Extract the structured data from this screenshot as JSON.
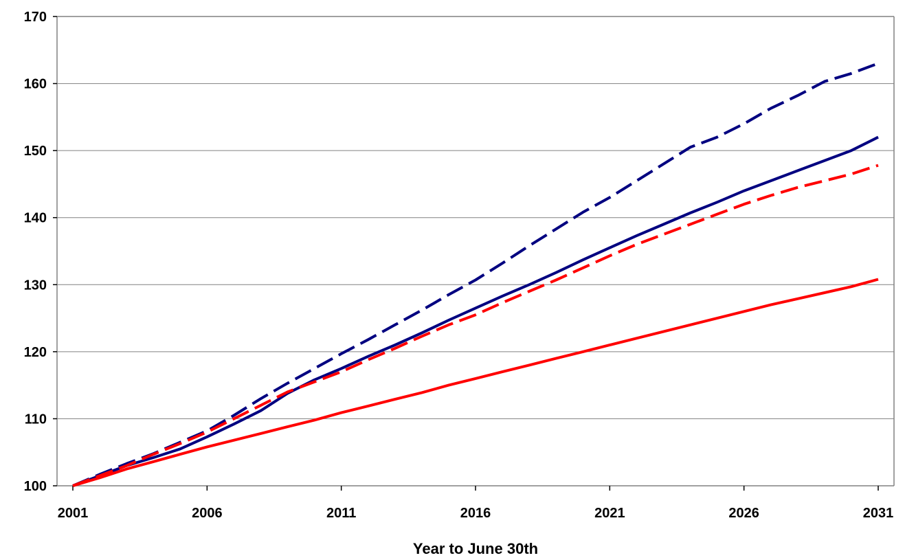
{
  "chart_data": {
    "type": "line",
    "title": "",
    "xlabel": "Year to June 30th",
    "ylabel": "",
    "xlim": [
      2001,
      2031
    ],
    "ylim": [
      100,
      170
    ],
    "x_ticks": [
      2001,
      2006,
      2011,
      2016,
      2021,
      2026,
      2031
    ],
    "x_tick_labels": [
      "2001",
      "2006",
      "2011",
      "2016",
      "2021",
      "2026",
      "2031"
    ],
    "y_ticks": [
      100,
      110,
      120,
      130,
      140,
      150,
      160,
      170
    ],
    "y_tick_labels": [
      "100",
      "110",
      "120",
      "130",
      "140",
      "150",
      "160",
      "170"
    ],
    "grid": "horizontal",
    "legend": "none",
    "series": [
      {
        "color": "#000080",
        "style": "dashed",
        "x": [
          2001,
          2002,
          2003,
          2004,
          2005,
          2006,
          2007,
          2008,
          2009,
          2010,
          2011,
          2012,
          2013,
          2014,
          2015,
          2016,
          2017,
          2018,
          2019,
          2020,
          2021,
          2022,
          2023,
          2024,
          2025,
          2026,
          2027,
          2028,
          2029,
          2030,
          2031
        ],
        "values": [
          100,
          101.7,
          103.3,
          104.8,
          106.5,
          108.2,
          110.5,
          113.0,
          115.3,
          117.5,
          119.7,
          121.8,
          124.0,
          126.2,
          128.5,
          130.7,
          133.2,
          135.8,
          138.3,
          140.8,
          143.0,
          145.5,
          148.0,
          150.5,
          152.0,
          154.0,
          156.3,
          158.2,
          160.3,
          161.5,
          163.0
        ]
      },
      {
        "color": "#000080",
        "style": "solid",
        "x": [
          2001,
          2002,
          2003,
          2004,
          2005,
          2006,
          2007,
          2008,
          2009,
          2010,
          2011,
          2012,
          2013,
          2014,
          2015,
          2016,
          2017,
          2018,
          2019,
          2020,
          2021,
          2022,
          2023,
          2024,
          2025,
          2026,
          2027,
          2028,
          2029,
          2030,
          2031
        ],
        "values": [
          100,
          101.5,
          103.0,
          104.2,
          105.5,
          107.3,
          109.2,
          111.2,
          113.8,
          115.8,
          117.5,
          119.3,
          121.0,
          122.8,
          124.7,
          126.5,
          128.3,
          130.0,
          131.8,
          133.7,
          135.5,
          137.3,
          139.0,
          140.7,
          142.3,
          144.0,
          145.5,
          147.0,
          148.5,
          150.0,
          152.0
        ]
      },
      {
        "color": "#ff0000",
        "style": "dashed",
        "x": [
          2001,
          2002,
          2003,
          2004,
          2005,
          2006,
          2007,
          2008,
          2009,
          2010,
          2011,
          2012,
          2013,
          2014,
          2015,
          2016,
          2017,
          2018,
          2019,
          2020,
          2021,
          2022,
          2023,
          2024,
          2025,
          2026,
          2027,
          2028,
          2029,
          2030,
          2031
        ],
        "values": [
          100,
          101.5,
          103.0,
          104.7,
          106.3,
          108.0,
          110.0,
          112.0,
          114.0,
          115.5,
          117.0,
          118.8,
          120.5,
          122.3,
          124.0,
          125.5,
          127.3,
          129.0,
          130.7,
          132.5,
          134.3,
          136.0,
          137.5,
          139.0,
          140.5,
          142.0,
          143.3,
          144.5,
          145.5,
          146.5,
          147.8
        ]
      },
      {
        "color": "#ff0000",
        "style": "solid",
        "x": [
          2001,
          2002,
          2003,
          2004,
          2005,
          2006,
          2007,
          2008,
          2009,
          2010,
          2011,
          2012,
          2013,
          2014,
          2015,
          2016,
          2017,
          2018,
          2019,
          2020,
          2021,
          2022,
          2023,
          2024,
          2025,
          2026,
          2027,
          2028,
          2029,
          2030,
          2031
        ],
        "values": [
          100,
          101.2,
          102.5,
          103.6,
          104.7,
          105.8,
          106.8,
          107.8,
          108.8,
          109.8,
          110.9,
          111.9,
          112.9,
          113.9,
          115.0,
          116.0,
          117.0,
          118.0,
          119.0,
          120.0,
          121.0,
          122.0,
          123.0,
          124.0,
          125.0,
          126.0,
          127.0,
          127.9,
          128.8,
          129.7,
          130.8
        ]
      }
    ]
  }
}
